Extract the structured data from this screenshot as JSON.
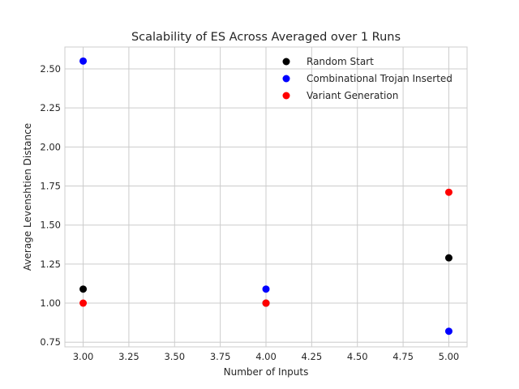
{
  "chart_data": {
    "type": "scatter",
    "title": "Scalability of ES Across Averaged over 1 Runs",
    "xlabel": "Number of Inputs",
    "ylabel": "Average Levenshtien Distance",
    "xlim": [
      2.9,
      5.1
    ],
    "ylim": [
      0.72,
      2.64
    ],
    "xticks": [
      3.0,
      3.25,
      3.5,
      3.75,
      4.0,
      4.25,
      4.5,
      4.75,
      5.0
    ],
    "xtick_labels": [
      "3.00",
      "3.25",
      "3.50",
      "3.75",
      "4.00",
      "4.25",
      "4.50",
      "4.75",
      "5.00"
    ],
    "yticks": [
      0.75,
      1.0,
      1.25,
      1.5,
      1.75,
      2.0,
      2.25,
      2.5
    ],
    "ytick_labels": [
      "0.75",
      "1.00",
      "1.25",
      "1.50",
      "1.75",
      "2.00",
      "2.25",
      "2.50"
    ],
    "grid": true,
    "legend_position": "upper-right",
    "series": [
      {
        "name": "Random Start",
        "color": "#000000",
        "x": [
          3,
          4,
          5
        ],
        "y": [
          1.09,
          1.0,
          1.29
        ]
      },
      {
        "name": "Combinational Trojan Inserted",
        "color": "#0000ff",
        "x": [
          3,
          4,
          5
        ],
        "y": [
          2.55,
          1.09,
          0.82
        ]
      },
      {
        "name": "Variant Generation",
        "color": "#ff0000",
        "x": [
          3,
          4,
          5
        ],
        "y": [
          1.0,
          1.0,
          1.71
        ]
      }
    ]
  }
}
